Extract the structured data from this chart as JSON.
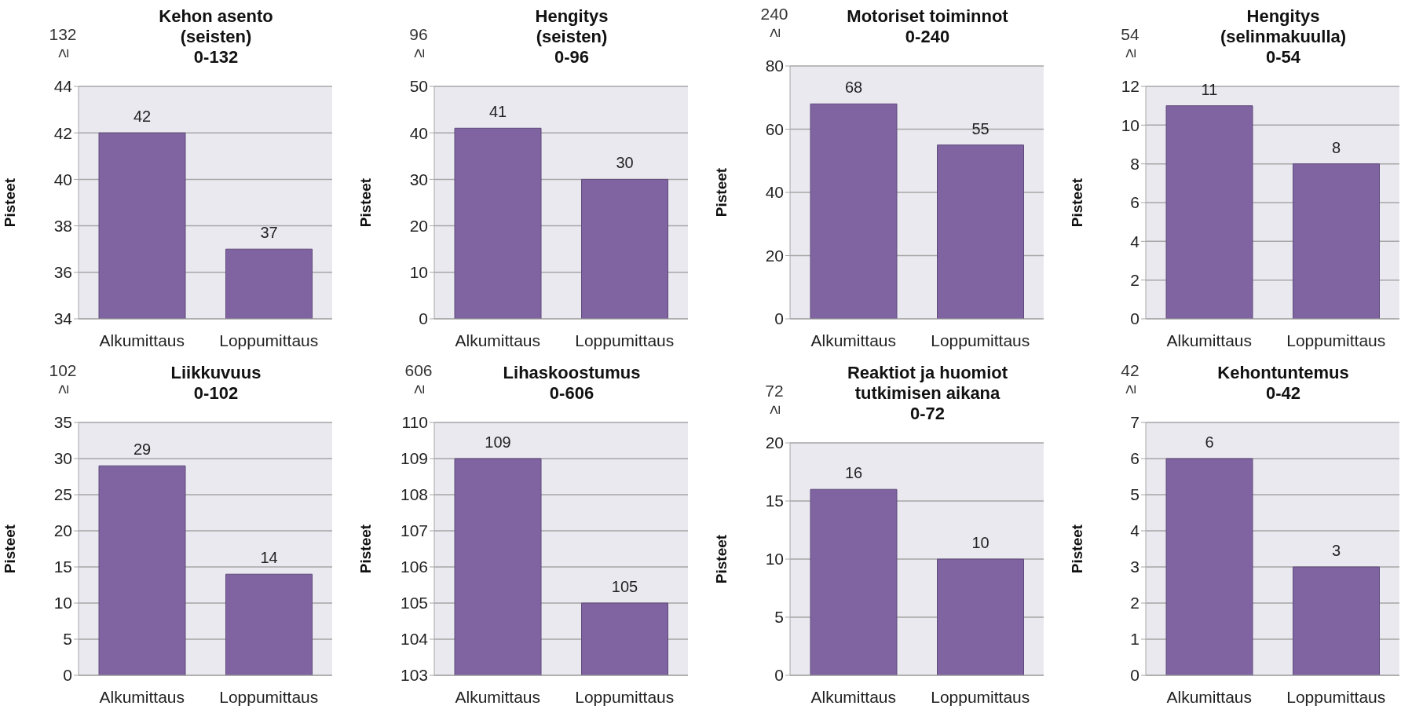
{
  "chart_data": [
    {
      "type": "bar",
      "title": "Kehon asento\n(seisten)\n0-132",
      "annotations": [
        "132 ≥"
      ],
      "ylabel": "Pisteet",
      "categories": [
        "Alkumittaus",
        "Loppumittaus"
      ],
      "values": [
        42,
        37
      ],
      "color": "#8064a2",
      "ylim": [
        34,
        44
      ],
      "yticks": [
        34,
        36,
        38,
        40,
        42,
        44
      ],
      "grid": "y",
      "data_labels": true
    },
    {
      "type": "bar",
      "title": "Hengitys\n(seisten)\n0-96",
      "annotations": [
        "96 ≥"
      ],
      "ylabel": "Pisteet",
      "categories": [
        "Alkumittaus",
        "Loppumittaus"
      ],
      "values": [
        41,
        30
      ],
      "color": "#8064a2",
      "ylim": [
        0,
        50
      ],
      "yticks": [
        0,
        10,
        20,
        30,
        40,
        50
      ],
      "grid": "y",
      "data_labels": true
    },
    {
      "type": "bar",
      "title": "Motoriset toiminnot\n0-240",
      "annotations": [
        "240 ≥"
      ],
      "ylabel": "Pisteet",
      "categories": [
        "Alkumittaus",
        "Loppumittaus"
      ],
      "values": [
        68,
        55
      ],
      "color": "#8064a2",
      "ylim": [
        0,
        80
      ],
      "yticks": [
        0,
        20,
        40,
        60,
        80
      ],
      "grid": "y",
      "data_labels": true
    },
    {
      "type": "bar",
      "title": "Hengitys\n(selinmakuulla)\n0-54",
      "annotations": [
        "54 ≥"
      ],
      "ylabel": "Pisteet",
      "categories": [
        "Alkumittaus",
        "Loppumittaus"
      ],
      "values": [
        11,
        8
      ],
      "color": "#8064a2",
      "ylim": [
        0,
        12
      ],
      "yticks": [
        0,
        2,
        4,
        6,
        8,
        10,
        12
      ],
      "grid": "y",
      "data_labels": true
    },
    {
      "type": "bar",
      "title": "Liikkuvuus\n0-102",
      "annotations": [
        "102 ≥"
      ],
      "ylabel": "Pisteet",
      "categories": [
        "Alkumittaus",
        "Loppumittaus"
      ],
      "values": [
        29,
        14
      ],
      "color": "#8064a2",
      "ylim": [
        0,
        35
      ],
      "yticks": [
        0,
        5,
        10,
        15,
        20,
        25,
        30,
        35
      ],
      "grid": "y",
      "data_labels": true
    },
    {
      "type": "bar",
      "title": "Lihaskoostumus\n0-606",
      "annotations": [
        "606 ≥"
      ],
      "ylabel": "Pisteet",
      "categories": [
        "Alkumittaus",
        "Loppumittaus"
      ],
      "values": [
        109,
        105
      ],
      "color": "#8064a2",
      "ylim": [
        103,
        110
      ],
      "yticks": [
        103,
        104,
        105,
        106,
        107,
        108,
        109,
        110
      ],
      "grid": "y",
      "data_labels": true
    },
    {
      "type": "bar",
      "title": "Reaktiot ja huomiot\ntutkimisen aikana\n0-72",
      "annotations": [
        "72 ≥"
      ],
      "ylabel": "Pisteet",
      "categories": [
        "Alkumittaus",
        "Loppumittaus"
      ],
      "values": [
        16,
        10
      ],
      "color": "#8064a2",
      "ylim": [
        0,
        20
      ],
      "yticks": [
        0,
        5,
        10,
        15,
        20
      ],
      "grid": "y",
      "data_labels": true
    },
    {
      "type": "bar",
      "title": "Kehontuntemus\n0-42",
      "annotations": [
        "42 ≥"
      ],
      "ylabel": "Pisteet",
      "categories": [
        "Alkumittaus",
        "Loppumittaus"
      ],
      "values": [
        6,
        3
      ],
      "color": "#8064a2",
      "ylim": [
        0,
        7
      ],
      "yticks": [
        0,
        1,
        2,
        3,
        4,
        5,
        6,
        7
      ],
      "grid": "y",
      "data_labels": true
    }
  ]
}
